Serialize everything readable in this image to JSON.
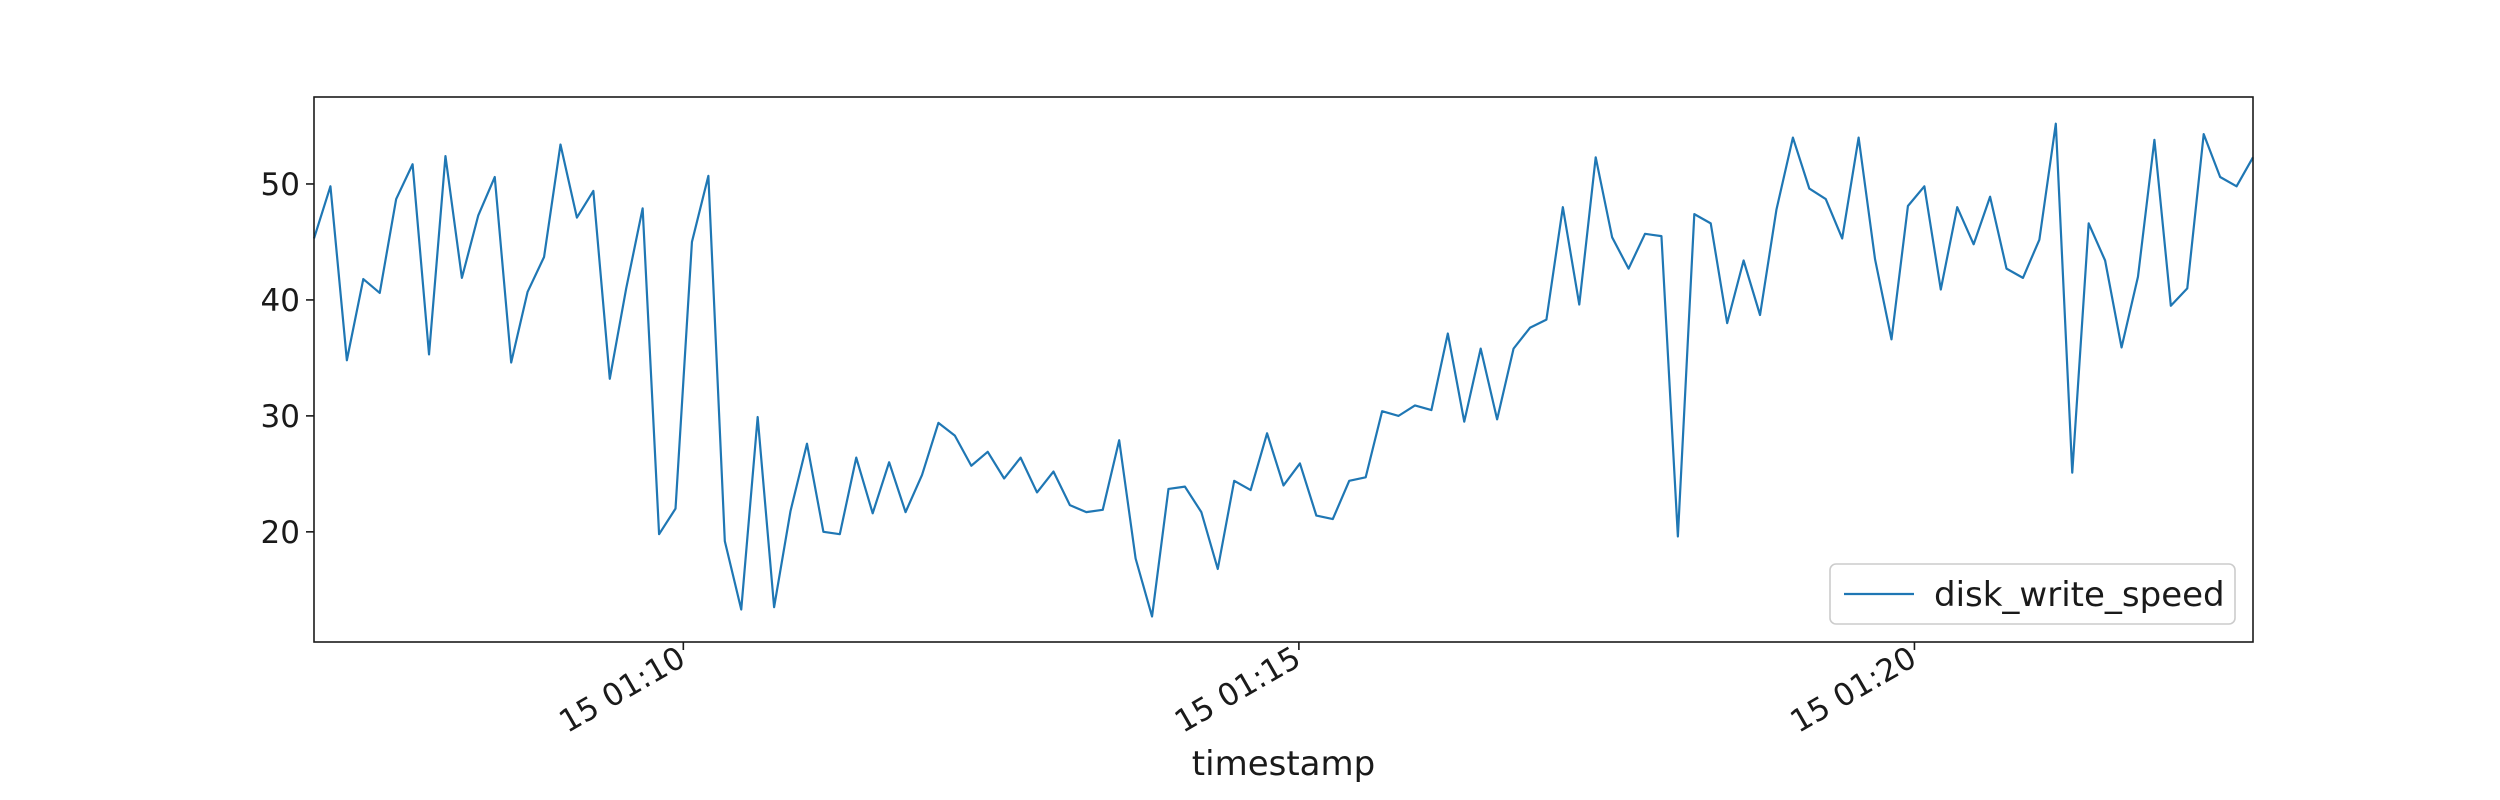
{
  "chart_data": {
    "type": "line",
    "title": "",
    "xlabel": "timestamp",
    "ylabel": "",
    "x_start_minutes": 67.0,
    "x_end_minutes": 82.75,
    "x_step_minutes": 0.1333,
    "xlim": [
      67.0,
      82.75
    ],
    "ylim": [
      10.5,
      57.5
    ],
    "yticks": [
      20,
      30,
      40,
      50
    ],
    "xticks": [
      {
        "value": 70,
        "label": "15 01:10"
      },
      {
        "value": 75,
        "label": "15 01:15"
      },
      {
        "value": 80,
        "label": "15 01:20"
      }
    ],
    "legend": {
      "position": "lower-right",
      "entries": [
        "disk_write_speed"
      ]
    },
    "grid": false,
    "series": [
      {
        "name": "disk_write_speed",
        "color": "#1f77b4",
        "values": [
          45.3,
          49.8,
          34.8,
          41.8,
          40.6,
          48.7,
          51.7,
          35.3,
          52.4,
          41.9,
          47.3,
          50.6,
          34.6,
          40.7,
          43.7,
          53.4,
          47.1,
          49.4,
          33.2,
          41.0,
          47.9,
          19.8,
          22.0,
          45.0,
          50.7,
          19.2,
          13.3,
          29.9,
          13.5,
          21.8,
          27.6,
          20.0,
          19.8,
          26.4,
          21.6,
          26.0,
          21.7,
          24.9,
          29.4,
          28.3,
          25.7,
          26.9,
          24.6,
          26.4,
          23.4,
          25.2,
          22.3,
          21.7,
          21.9,
          27.9,
          17.7,
          12.7,
          23.7,
          23.9,
          21.7,
          16.8,
          24.4,
          23.6,
          28.5,
          24.0,
          25.9,
          21.4,
          21.1,
          24.4,
          24.7,
          30.4,
          30.0,
          30.9,
          30.5,
          37.1,
          29.5,
          35.8,
          29.7,
          35.8,
          37.6,
          38.3,
          48.0,
          39.6,
          52.3,
          45.4,
          42.7,
          45.7,
          45.5,
          19.6,
          47.4,
          46.6,
          38.0,
          43.4,
          38.7,
          47.8,
          54.0,
          49.6,
          48.7,
          45.3,
          54.0,
          43.5,
          36.6,
          48.1,
          49.8,
          40.9,
          48.0,
          44.8,
          48.9,
          42.7,
          41.9,
          45.2,
          55.2,
          25.1,
          46.6,
          43.4,
          35.9,
          42.0,
          53.8,
          39.5,
          41.0,
          54.3,
          50.6,
          49.8,
          52.3
        ]
      }
    ]
  }
}
